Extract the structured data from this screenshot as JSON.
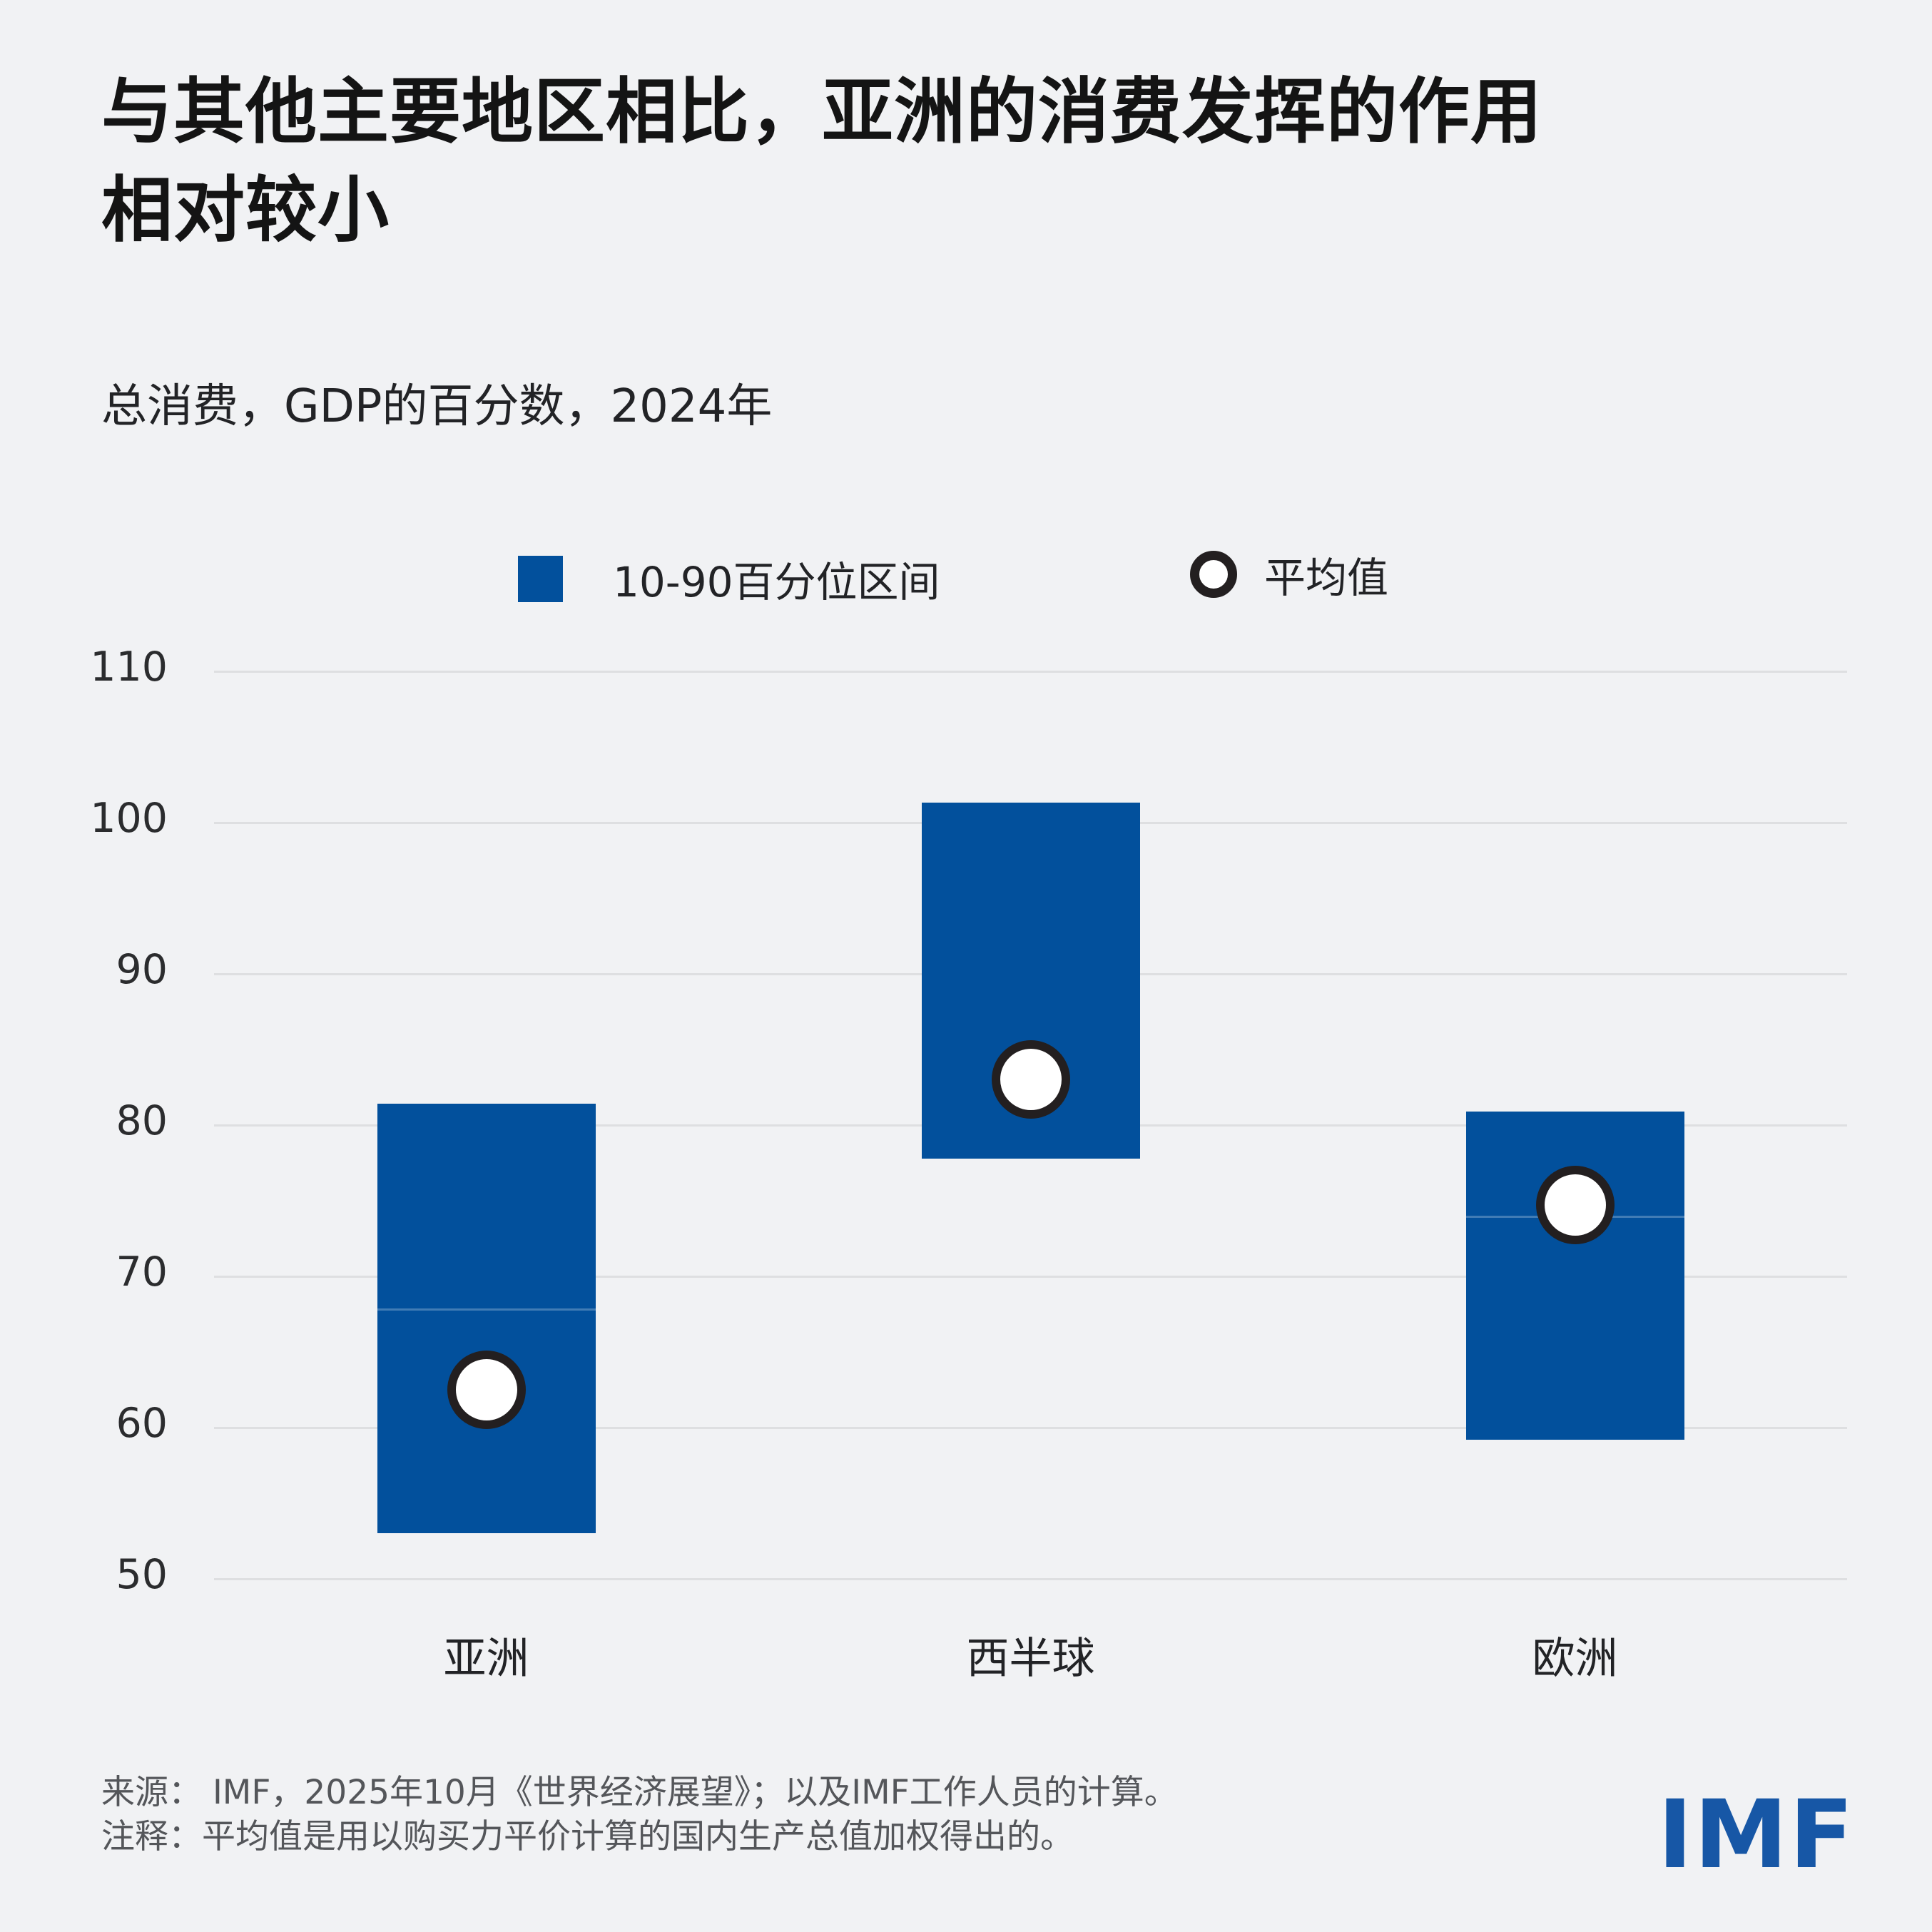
{
  "header": {
    "title_lines": [
      "与其他主要地区相比，亚洲的消费发挥的作用",
      "相对较小"
    ],
    "subtitle": "总消费，GDP的百分数，2024年"
  },
  "legend": {
    "range_label": "10-90百分位区间",
    "mean_label": "平均值"
  },
  "chart_data": {
    "type": "bar",
    "subtype": "floating-range-bars-with-mean-markers",
    "title": "总消费，GDP的百分数，2024年",
    "categories": [
      "亚洲",
      "西半球",
      "欧洲"
    ],
    "series": [
      {
        "name": "10-90百分位区间",
        "type": "range",
        "values": [
          [
            53.0,
            81.4
          ],
          [
            77.8,
            101.3
          ],
          [
            59.2,
            80.9
          ]
        ]
      },
      {
        "name": "平均值",
        "type": "point",
        "values": [
          62.5,
          83.0,
          74.7
        ]
      }
    ],
    "range_divider_values": [
      67.9,
      null,
      74.0
    ],
    "xlabel": "",
    "ylabel": "",
    "ylim": [
      50,
      110
    ],
    "yticks": [
      50,
      60,
      70,
      80,
      90,
      100,
      110
    ],
    "grid": true,
    "legend_position": "top-center"
  },
  "footer": {
    "source": "来源： IMF，2025年10月《世界经济展望》；以及IMF工作人员的计算。",
    "note": "注释：平均值是用以购买力平价计算的国内生产总值加权得出的。",
    "logo_text": "IMF"
  },
  "colors": {
    "background": "#F1F2F4",
    "bar": "#02509C",
    "gridline": "#DEDFE1",
    "mean_circle_fill": "#FFFFFF",
    "mean_circle_stroke": "#231F20",
    "title_text": "#141414",
    "footer_text": "#54565A",
    "logo": "#1757A6"
  }
}
